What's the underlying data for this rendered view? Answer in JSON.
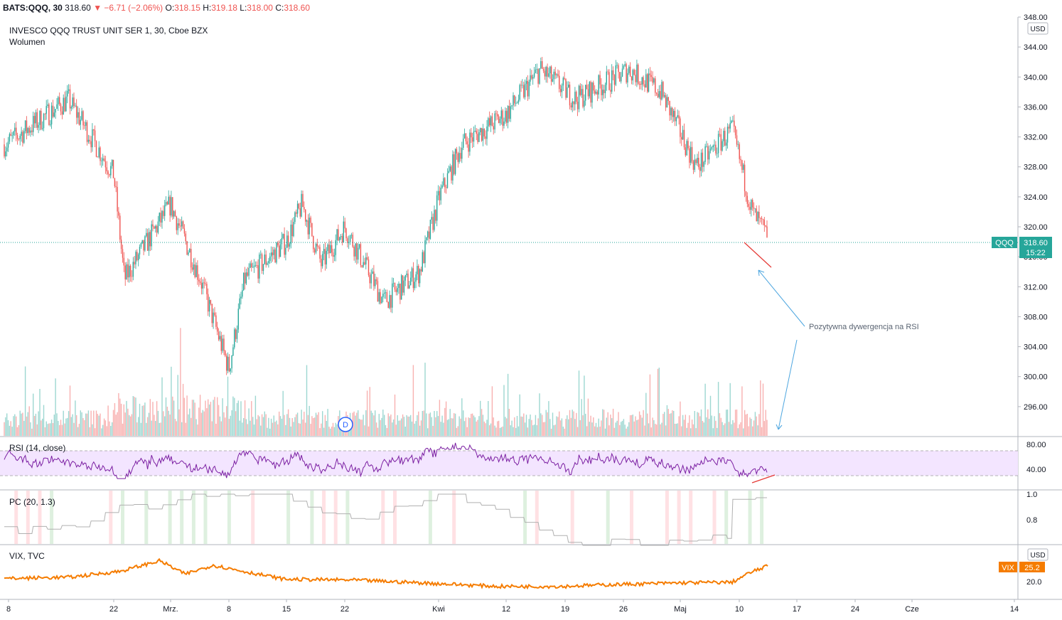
{
  "header": {
    "symbol": "BATS:QQQ, 30",
    "last": "318.60",
    "arrow": "▼",
    "change": "−6.71 (−2.06%)",
    "o_label": "O:",
    "o_value": "318.15",
    "h_label": "H:",
    "h_value": "319.18",
    "l_label": "L:",
    "l_value": "318.00",
    "c_label": "C:",
    "c_value": "318.60"
  },
  "legend": {
    "title": "INVESCO QQQ TRUST UNIT SER 1, 30, Cboe BZX",
    "volume": "Wolumen",
    "rsi": "RSI (14, close)",
    "pc": "PC (20, 1.3)",
    "vix": "VIX, TVC"
  },
  "annotation": {
    "text": "Pozytywna dywergencja na RSI"
  },
  "dividend_marker": "D",
  "currency_badge": "USD",
  "price_tag": {
    "symbol": "QQQ",
    "price": "318.60",
    "countdown": "15:22"
  },
  "vix_tag": {
    "symbol": "VIX",
    "value": "25.2"
  },
  "colors": {
    "up": "#26a69a",
    "down": "#ef5350",
    "rsi_line": "#7b1fa2",
    "rsi_band": "#f3e5ff",
    "vix_line": "#f57c00",
    "price_tag": "#26a69a",
    "annotation": "#4da6e0",
    "divergence": "#e53935"
  },
  "chart_data": [
    {
      "type": "candlestick",
      "title": "INVESCO QQQ TRUST UNIT SER 1, 30, Cboe BZX",
      "ylim": [
        292,
        348
      ],
      "y_ticks": [
        "296.00",
        "300.00",
        "304.00",
        "308.00",
        "312.00",
        "316.00",
        "320.00",
        "324.00",
        "328.00",
        "332.00",
        "336.00",
        "340.00",
        "344.00",
        "348.00"
      ],
      "x_tick_labels": [
        "8",
        "22",
        "Mrz.",
        "8",
        "15",
        "22",
        "Kwi",
        "12",
        "19",
        "26",
        "Maj",
        "10",
        "17",
        "24",
        "Cze",
        "14"
      ],
      "last_price": 318.6,
      "key_points": [
        {
          "x": "Feb 8",
          "close": 331
        },
        {
          "x": "Feb 16",
          "close": 337
        },
        {
          "x": "Feb 22",
          "close": 327
        },
        {
          "x": "Feb 25",
          "close": 313
        },
        {
          "x": "Mar 1",
          "close": 323
        },
        {
          "x": "Mar 4",
          "close": 313
        },
        {
          "x": "Mar 8",
          "close": 301
        },
        {
          "x": "Mar 10",
          "close": 313
        },
        {
          "x": "Mar 15",
          "close": 318
        },
        {
          "x": "Mar 17",
          "close": 323
        },
        {
          "x": "Mar 19",
          "close": 315
        },
        {
          "x": "Mar 22",
          "close": 320
        },
        {
          "x": "Mar 25",
          "close": 310
        },
        {
          "x": "Mar 29",
          "close": 314
        },
        {
          "x": "Apr 1",
          "close": 324
        },
        {
          "x": "Apr 6",
          "close": 331
        },
        {
          "x": "Apr 12",
          "close": 335
        },
        {
          "x": "Apr 16",
          "close": 341
        },
        {
          "x": "Apr 21",
          "close": 337
        },
        {
          "x": "Apr 27",
          "close": 341
        },
        {
          "x": "Apr 30",
          "close": 338
        },
        {
          "x": "May 4",
          "close": 328
        },
        {
          "x": "May 7",
          "close": 331
        },
        {
          "x": "May 10",
          "close": 333
        },
        {
          "x": "May 12",
          "close": 322
        },
        {
          "x": "May 13",
          "close": 318.6
        }
      ]
    },
    {
      "type": "line",
      "title": "RSI (14, close)",
      "ylim": [
        20,
        90
      ],
      "y_ticks": [
        "40.00",
        "80.00"
      ],
      "band": [
        30,
        70
      ],
      "last_value": 35
    },
    {
      "type": "line",
      "title": "PC (20, 1.3)",
      "ylim": [
        0.55,
        1.05
      ],
      "y_ticks": [
        "0.8",
        "1.0"
      ]
    },
    {
      "type": "line",
      "title": "VIX, TVC",
      "ylim": [
        16,
        32
      ],
      "y_ticks": [
        "20.0"
      ],
      "last_value": 25.2
    }
  ]
}
